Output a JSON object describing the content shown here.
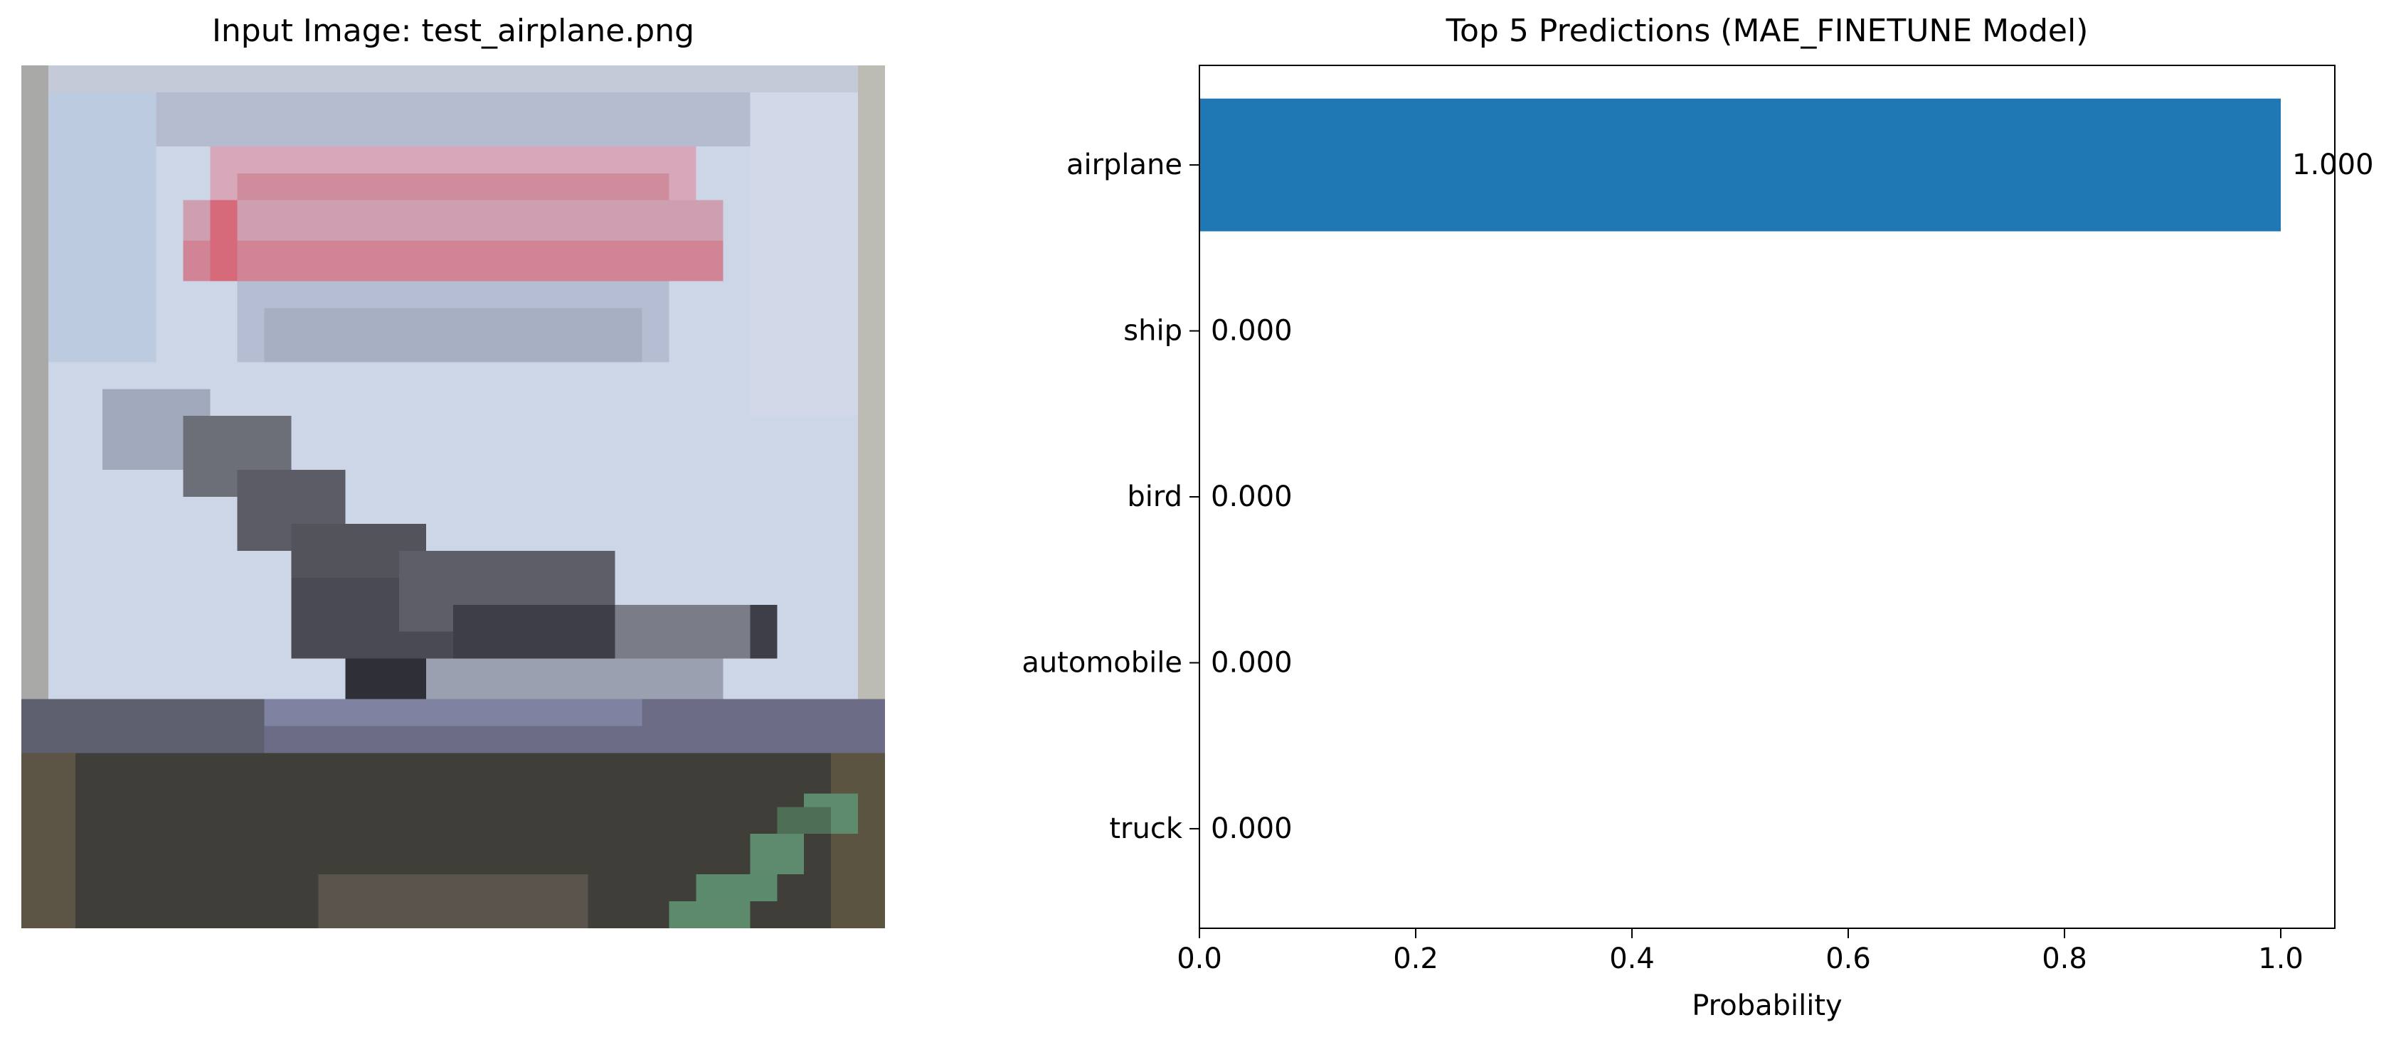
{
  "left_panel": {
    "title": "Input Image: test_airplane.png"
  },
  "chart_data": {
    "type": "bar",
    "orientation": "horizontal",
    "title": "Top 5 Predictions (MAE_FINETUNE Model)",
    "categories": [
      "airplane",
      "ship",
      "bird",
      "automobile",
      "truck"
    ],
    "values": [
      1.0,
      0.0,
      0.0,
      0.0,
      0.0
    ],
    "value_labels": [
      "1.000",
      "0.000",
      "0.000",
      "0.000",
      "0.000"
    ],
    "xlabel": "Probability",
    "ylabel": "",
    "xlim": [
      0,
      1.05
    ],
    "xticks": [
      0.0,
      0.2,
      0.4,
      0.6,
      0.8,
      1.0
    ],
    "xtick_labels": [
      "0.0",
      "0.2",
      "0.4",
      "0.6",
      "0.8",
      "1.0"
    ],
    "grid": false,
    "bar_color": "#1f77b4"
  }
}
